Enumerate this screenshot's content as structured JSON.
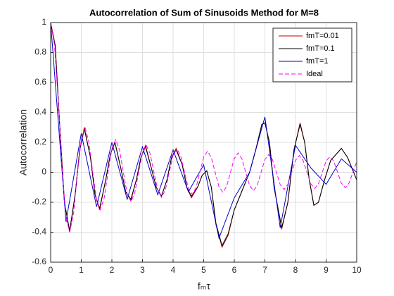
{
  "chart_data": {
    "type": "line",
    "title": "Autocorrelation of Sum of Sinusoids Method for M=8",
    "xlabel": "fₘτ",
    "ylabel": "Autocorrelation",
    "xlim": [
      0,
      10
    ],
    "xticks": [
      0,
      1,
      2,
      3,
      4,
      5,
      6,
      7,
      8,
      9,
      10
    ],
    "ylim": [
      -0.6,
      1
    ],
    "yticks": [
      -0.6,
      -0.4,
      -0.2,
      0,
      0.2,
      0.4,
      0.6,
      0.8,
      1
    ],
    "grid": true,
    "legend": "northeast",
    "series": [
      {
        "name": "fmT=0.01",
        "color": "#c00000",
        "x": [
          0,
          0.15,
          0.3,
          0.45,
          0.62,
          0.8,
          0.95,
          1.1,
          1.3,
          1.45,
          1.6,
          1.8,
          1.95,
          2.1,
          2.3,
          2.45,
          2.62,
          2.8,
          2.95,
          3.1,
          3.3,
          3.45,
          3.62,
          3.8,
          3.95,
          4.1,
          4.3,
          4.45,
          4.6,
          4.8,
          4.95,
          5.1,
          5.25,
          5.4,
          5.6,
          5.8,
          6.0,
          6.3,
          6.5,
          6.7,
          6.9,
          7.0,
          7.15,
          7.3,
          7.55,
          7.75,
          7.95,
          8.15,
          8.3,
          8.45,
          8.6,
          8.75,
          8.95,
          9.15,
          9.5,
          9.7,
          10
        ],
        "values": [
          1,
          0.85,
          0.3,
          -0.2,
          -0.4,
          -0.15,
          0.15,
          0.3,
          0.1,
          -0.15,
          -0.25,
          -0.05,
          0.12,
          0.2,
          0.02,
          -0.13,
          -0.19,
          -0.05,
          0.1,
          0.18,
          0.02,
          -0.1,
          -0.16,
          -0.05,
          0.1,
          0.16,
          0.05,
          -0.1,
          -0.17,
          -0.1,
          -0.02,
          0.01,
          -0.1,
          -0.35,
          -0.5,
          -0.42,
          -0.25,
          -0.1,
          0,
          0.15,
          0.32,
          0.33,
          0.2,
          -0.1,
          -0.38,
          -0.2,
          0.15,
          0.33,
          0.2,
          -0.05,
          -0.22,
          -0.2,
          -0.05,
          0.08,
          0.16,
          0.1,
          -0.05
        ]
      },
      {
        "name": "fmT=0.1",
        "color": "#000000",
        "x": [
          0,
          0.15,
          0.3,
          0.45,
          0.62,
          0.8,
          0.95,
          1.1,
          1.3,
          1.45,
          1.6,
          1.8,
          1.95,
          2.1,
          2.3,
          2.45,
          2.62,
          2.8,
          2.95,
          3.1,
          3.3,
          3.45,
          3.62,
          3.8,
          3.95,
          4.1,
          4.3,
          4.45,
          4.6,
          4.8,
          4.95,
          5.1,
          5.25,
          5.4,
          5.6,
          5.8,
          6.0,
          6.3,
          6.5,
          6.7,
          6.9,
          7.0,
          7.15,
          7.3,
          7.55,
          7.75,
          7.95,
          8.15,
          8.3,
          8.45,
          8.6,
          8.75,
          8.95,
          9.15,
          9.5,
          9.7,
          10
        ],
        "values": [
          1,
          0.84,
          0.3,
          -0.2,
          -0.39,
          -0.15,
          0.15,
          0.29,
          0.1,
          -0.15,
          -0.24,
          -0.05,
          0.12,
          0.2,
          0.02,
          -0.13,
          -0.18,
          -0.05,
          0.1,
          0.17,
          0.02,
          -0.1,
          -0.16,
          -0.05,
          0.1,
          0.15,
          0.05,
          -0.1,
          -0.16,
          -0.1,
          -0.02,
          0.01,
          -0.1,
          -0.34,
          -0.49,
          -0.41,
          -0.25,
          -0.1,
          0,
          0.15,
          0.32,
          0.33,
          0.2,
          -0.1,
          -0.37,
          -0.2,
          0.15,
          0.32,
          0.2,
          -0.05,
          -0.22,
          -0.2,
          -0.05,
          0.08,
          0.16,
          0.1,
          -0.05
        ]
      },
      {
        "name": "fmT=1",
        "color": "#0000cc",
        "x": [
          0,
          0.5,
          1,
          1.5,
          2,
          2.5,
          3,
          3.5,
          4,
          4.5,
          5,
          5.5,
          6,
          6.5,
          7,
          7.5,
          8,
          8.5,
          9,
          9.5,
          10
        ],
        "values": [
          1,
          -0.33,
          0.26,
          -0.23,
          0.2,
          -0.18,
          0.17,
          -0.15,
          0.15,
          -0.13,
          0.05,
          -0.44,
          -0.17,
          0,
          0.37,
          -0.37,
          0.18,
          0.03,
          -0.08,
          0.09,
          0
        ]
      },
      {
        "name": "Ideal",
        "color": "#ff00ff",
        "style": "dashed",
        "x": [
          0,
          0.125,
          0.25,
          0.375,
          0.5,
          0.625,
          0.75,
          0.875,
          1,
          1.125,
          1.25,
          1.375,
          1.5,
          1.625,
          1.75,
          1.875,
          2,
          2.125,
          2.25,
          2.375,
          2.5,
          2.625,
          2.75,
          2.875,
          3,
          3.125,
          3.25,
          3.375,
          3.5,
          3.625,
          3.75,
          3.875,
          4,
          4.125,
          4.25,
          4.375,
          4.5,
          4.625,
          4.75,
          4.875,
          5,
          5.125,
          5.25,
          5.375,
          5.5,
          5.625,
          5.75,
          5.875,
          6,
          6.125,
          6.25,
          6.375,
          6.5,
          6.625,
          6.75,
          6.875,
          7,
          7.125,
          7.25,
          7.375,
          7.5,
          7.625,
          7.75,
          7.875,
          8,
          8.125,
          8.25,
          8.375,
          8.5,
          8.625,
          8.75,
          8.875,
          9,
          9.125,
          9.25,
          9.375,
          9.5,
          9.625,
          9.75,
          9.875,
          10
        ],
        "values": [
          1,
          0.852,
          0.472,
          0.025,
          -0.304,
          -0.4,
          -0.27,
          -0.006,
          0.22,
          0.3,
          0.201,
          0,
          -0.184,
          -0.25,
          -0.17,
          0,
          0.159,
          0.218,
          0.15,
          0,
          -0.142,
          -0.196,
          -0.136,
          0,
          0.13,
          0.18,
          0.125,
          0,
          -0.12,
          -0.167,
          -0.116,
          0,
          0.113,
          0.157,
          0.109,
          0,
          -0.106,
          -0.148,
          -0.103,
          0,
          0.101,
          0.141,
          0.098,
          0,
          -0.096,
          -0.134,
          -0.094,
          0,
          0.092,
          0.129,
          0.09,
          0,
          -0.088,
          -0.124,
          -0.087,
          0,
          0.085,
          0.119,
          0.084,
          0,
          -0.082,
          -0.115,
          -0.081,
          0,
          0.08,
          0.112,
          0.078,
          0,
          -0.077,
          -0.108,
          -0.076,
          0,
          0.075,
          0.105,
          0.074,
          0,
          -0.073,
          -0.103,
          -0.072,
          0,
          0.071
        ]
      }
    ]
  }
}
